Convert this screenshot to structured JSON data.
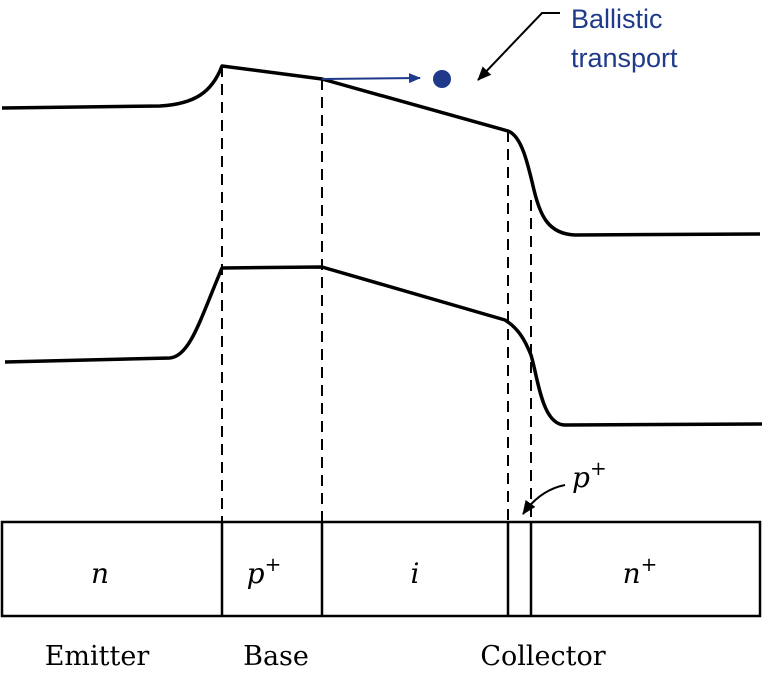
{
  "annotation": {
    "line1": "Ballistic",
    "line2": "transport",
    "color": "#1f3a8a"
  },
  "regions": {
    "emitter_layer": "n",
    "base_layer_letter": "p",
    "base_layer_sup": "+",
    "intrinsic_layer": "i",
    "collector_layer_letter": "n",
    "collector_layer_sup": "+"
  },
  "thin_layer_label": {
    "letter": "p",
    "sup": "+"
  },
  "bottom_labels": {
    "emitter": "Emitter",
    "base": "Base",
    "collector": "Collector"
  },
  "colors": {
    "line": "#000000",
    "accent": "#1f3a8a"
  }
}
